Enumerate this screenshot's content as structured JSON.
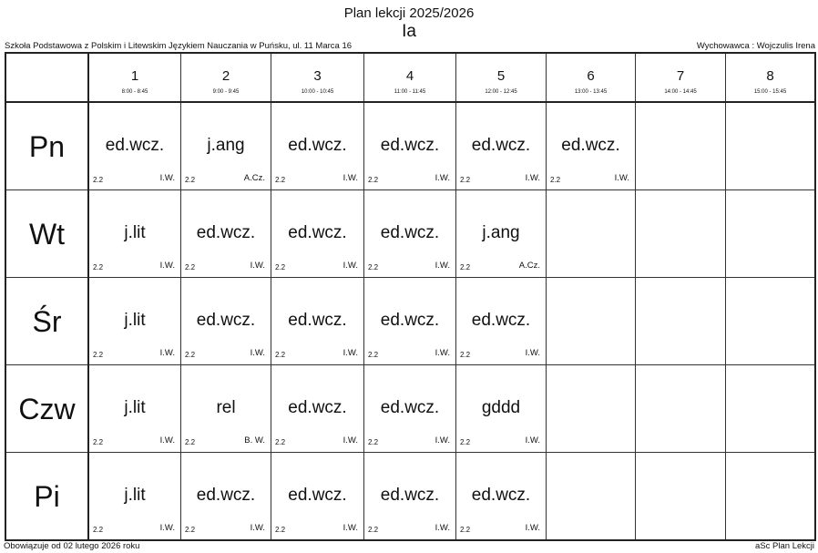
{
  "title": "Plan lekcji 2025/2026",
  "class_name": "Ia",
  "school": "Szkoła Podstawowa z Polskim i Litewskim Językiem Nauczania w Puńsku, ul. 11 Marca 16",
  "tutor": "Wychowawca : Wojczulis Irena",
  "footer_left": "Obowiązuje od 02 lutego 2026 roku",
  "footer_right": "aSc Plan Lekcji",
  "periods": [
    {
      "num": "1",
      "time": "8:00 - 8:45"
    },
    {
      "num": "2",
      "time": "9:00 - 9:45"
    },
    {
      "num": "3",
      "time": "10:00 - 10:45"
    },
    {
      "num": "4",
      "time": "11:00 - 11:45"
    },
    {
      "num": "5",
      "time": "12:00 - 12:45"
    },
    {
      "num": "6",
      "time": "13:00 - 13:45"
    },
    {
      "num": "7",
      "time": "14:00 - 14:45"
    },
    {
      "num": "8",
      "time": "15:00 - 15:45"
    }
  ],
  "days": [
    {
      "name": "Pn",
      "lessons": [
        {
          "subject": "ed.wcz.",
          "room": "2.2",
          "teacher": "I.W."
        },
        {
          "subject": "j.ang",
          "room": "2.2",
          "teacher": "A.Cz."
        },
        {
          "subject": "ed.wcz.",
          "room": "2.2",
          "teacher": "I.W."
        },
        {
          "subject": "ed.wcz.",
          "room": "2.2",
          "teacher": "I.W."
        },
        {
          "subject": "ed.wcz.",
          "room": "2.2",
          "teacher": "I.W."
        },
        {
          "subject": "ed.wcz.",
          "room": "2.2",
          "teacher": "I.W."
        },
        null,
        null
      ]
    },
    {
      "name": "Wt",
      "lessons": [
        {
          "subject": "j.lit",
          "room": "2.2",
          "teacher": "I.W."
        },
        {
          "subject": "ed.wcz.",
          "room": "2.2",
          "teacher": "I.W."
        },
        {
          "subject": "ed.wcz.",
          "room": "2.2",
          "teacher": "I.W."
        },
        {
          "subject": "ed.wcz.",
          "room": "2.2",
          "teacher": "I.W."
        },
        {
          "subject": "j.ang",
          "room": "2.2",
          "teacher": "A.Cz."
        },
        null,
        null,
        null
      ]
    },
    {
      "name": "Śr",
      "lessons": [
        {
          "subject": "j.lit",
          "room": "2.2",
          "teacher": "I.W."
        },
        {
          "subject": "ed.wcz.",
          "room": "2.2",
          "teacher": "I.W."
        },
        {
          "subject": "ed.wcz.",
          "room": "2.2",
          "teacher": "I.W."
        },
        {
          "subject": "ed.wcz.",
          "room": "2.2",
          "teacher": "I.W."
        },
        {
          "subject": "ed.wcz.",
          "room": "2.2",
          "teacher": "I.W."
        },
        null,
        null,
        null
      ]
    },
    {
      "name": "Czw",
      "lessons": [
        {
          "subject": "j.lit",
          "room": "2.2",
          "teacher": "I.W."
        },
        {
          "subject": "rel",
          "room": "2.2",
          "teacher": "B. W."
        },
        {
          "subject": "ed.wcz.",
          "room": "2.2",
          "teacher": "I.W."
        },
        {
          "subject": "ed.wcz.",
          "room": "2.2",
          "teacher": "I.W."
        },
        {
          "subject": "gddd",
          "room": "2.2",
          "teacher": "I.W."
        },
        null,
        null,
        null
      ]
    },
    {
      "name": "Pi",
      "lessons": [
        {
          "subject": "j.lit",
          "room": "2.2",
          "teacher": "I.W."
        },
        {
          "subject": "ed.wcz.",
          "room": "2.2",
          "teacher": "I.W."
        },
        {
          "subject": "ed.wcz.",
          "room": "2.2",
          "teacher": "I.W."
        },
        {
          "subject": "ed.wcz.",
          "room": "2.2",
          "teacher": "I.W."
        },
        {
          "subject": "ed.wcz.",
          "room": "2.2",
          "teacher": "I.W."
        },
        null,
        null,
        null
      ]
    }
  ]
}
